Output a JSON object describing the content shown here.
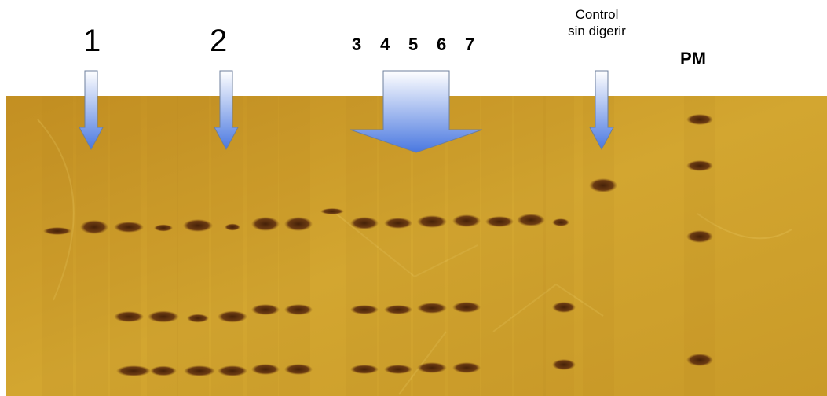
{
  "labels": {
    "lane_1": "1",
    "lane_2": "2",
    "lane_3": "3",
    "lane_4": "4",
    "lane_5": "5",
    "lane_6": "6",
    "lane_7": "7",
    "control_line1": "Control",
    "control_line2": "sin digerir",
    "marker": "PM"
  },
  "colors": {
    "gel_base": "#c99a28",
    "gel_light": "#dcb13a",
    "band": "#5a2a0e",
    "arrow_top": "#ffffff",
    "arrow_bottom": "#4a78e0",
    "arrow_stroke": "#6d7f9c"
  }
}
